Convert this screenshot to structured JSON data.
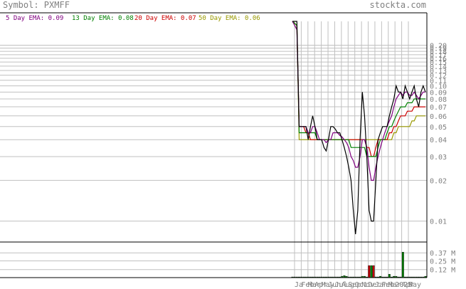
{
  "header": {
    "symbol_label": "Symbol: PXMFF",
    "site": "stockta.com"
  },
  "legend": [
    {
      "label": "5 Day EMA: 0.09",
      "color": "#800080"
    },
    {
      "label": "13 Day EMA: 0.08",
      "color": "#008000"
    },
    {
      "label": "20 Day EMA: 0.07",
      "color": "#cc0000"
    },
    {
      "label": "50 Day EMA: 0.06",
      "color": "#999900"
    }
  ],
  "colors": {
    "price": "#000000",
    "grid": "#c0c0c0",
    "axis_text": "#808080",
    "title": "#808080",
    "volume_up": "#008000",
    "volume_down": "#cc0000"
  },
  "chart_data": [
    {
      "type": "line",
      "yscale": "log",
      "ylim": [
        0.007,
        0.3
      ],
      "y_tick_labels": [
        "0.20",
        "0.19",
        "0.18",
        "0.17",
        "0.16",
        "0.15",
        "0.14",
        "0.13",
        "0.12",
        "0.11",
        "0.10",
        "0.09",
        "0.08",
        "0.07",
        "0.06",
        "0.05",
        "0.04",
        "0.03",
        "0.02",
        "0.01"
      ],
      "x_tick_labels": [
        "Ja",
        "Feb",
        "Mar",
        "Apr",
        "May",
        "Jun",
        "Jul",
        "Aug",
        "Sep",
        "Oct",
        "Nov",
        "Dec",
        "Jan",
        "Feb",
        "Mar",
        "2025",
        "Apr",
        "May"
      ],
      "series": [
        {
          "name": "price",
          "values": [
            0.3,
            0.3,
            0.3,
            0.05,
            0.05,
            0.05,
            0.05,
            0.04,
            0.05,
            0.06,
            0.05,
            0.04,
            0.04,
            0.04,
            0.035,
            0.033,
            0.04,
            0.05,
            0.05,
            0.048,
            0.045,
            0.045,
            0.04,
            0.035,
            0.03,
            0.025,
            0.02,
            0.012,
            0.008,
            0.012,
            0.04,
            0.09,
            0.06,
            0.03,
            0.012,
            0.01,
            0.01,
            0.02,
            0.04,
            0.045,
            0.05,
            0.05,
            0.05,
            0.06,
            0.07,
            0.08,
            0.1,
            0.09,
            0.09,
            0.08,
            0.1,
            0.09,
            0.08,
            0.09,
            0.1,
            0.08,
            0.07,
            0.09,
            0.1,
            0.09
          ]
        },
        {
          "name": "5 Day EMA",
          "values": [
            0.3,
            0.28,
            0.26,
            0.05,
            0.05,
            0.05,
            0.05,
            0.045,
            0.045,
            0.05,
            0.05,
            0.045,
            0.04,
            0.04,
            0.04,
            0.038,
            0.04,
            0.04,
            0.045,
            0.045,
            0.045,
            0.043,
            0.042,
            0.04,
            0.038,
            0.035,
            0.03,
            0.028,
            0.025,
            0.025,
            0.03,
            0.04,
            0.04,
            0.035,
            0.025,
            0.02,
            0.02,
            0.025,
            0.03,
            0.035,
            0.04,
            0.045,
            0.05,
            0.055,
            0.06,
            0.07,
            0.08,
            0.085,
            0.09,
            0.085,
            0.09,
            0.09,
            0.085,
            0.085,
            0.09,
            0.085,
            0.08,
            0.085,
            0.09,
            0.09
          ]
        },
        {
          "name": "13 Day EMA",
          "values": [
            0.3,
            0.29,
            0.28,
            0.045,
            0.045,
            0.045,
            0.045,
            0.045,
            0.045,
            0.045,
            0.045,
            0.04,
            0.04,
            0.04,
            0.04,
            0.04,
            0.04,
            0.04,
            0.04,
            0.04,
            0.04,
            0.04,
            0.04,
            0.04,
            0.04,
            0.04,
            0.035,
            0.035,
            0.035,
            0.035,
            0.035,
            0.035,
            0.035,
            0.03,
            0.03,
            0.03,
            0.03,
            0.03,
            0.035,
            0.04,
            0.04,
            0.04,
            0.045,
            0.05,
            0.05,
            0.055,
            0.06,
            0.065,
            0.07,
            0.07,
            0.07,
            0.075,
            0.075,
            0.075,
            0.08,
            0.08,
            0.08,
            0.08,
            0.08,
            0.08
          ]
        },
        {
          "name": "20 Day EMA",
          "values": [
            0.3,
            0.29,
            0.28,
            0.05,
            0.05,
            0.05,
            0.045,
            0.045,
            0.04,
            0.04,
            0.04,
            0.04,
            0.04,
            0.04,
            0.04,
            0.04,
            0.04,
            0.04,
            0.04,
            0.04,
            0.04,
            0.04,
            0.04,
            0.04,
            0.04,
            0.04,
            0.04,
            0.04,
            0.04,
            0.04,
            0.04,
            0.04,
            0.04,
            0.035,
            0.035,
            0.03,
            0.03,
            0.035,
            0.04,
            0.04,
            0.04,
            0.04,
            0.04,
            0.045,
            0.045,
            0.05,
            0.05,
            0.055,
            0.06,
            0.06,
            0.06,
            0.065,
            0.065,
            0.065,
            0.07,
            0.07,
            0.07,
            0.07,
            0.07,
            0.07
          ]
        },
        {
          "name": "50 Day EMA",
          "values": [
            0.3,
            0.29,
            0.28,
            0.04,
            0.04,
            0.04,
            0.04,
            0.04,
            0.04,
            0.04,
            0.04,
            0.04,
            0.04,
            0.04,
            0.04,
            0.04,
            0.04,
            0.04,
            0.04,
            0.04,
            0.04,
            0.04,
            0.04,
            0.04,
            0.04,
            0.04,
            0.04,
            0.04,
            0.04,
            0.04,
            0.04,
            0.04,
            0.04,
            0.04,
            0.04,
            0.04,
            0.04,
            0.04,
            0.04,
            0.04,
            0.04,
            0.04,
            0.04,
            0.04,
            0.04,
            0.045,
            0.045,
            0.05,
            0.05,
            0.05,
            0.05,
            0.05,
            0.05,
            0.055,
            0.055,
            0.06,
            0.06,
            0.06,
            0.06,
            0.06
          ]
        }
      ]
    },
    {
      "type": "bar",
      "ylim": [
        0,
        0.5
      ],
      "y_tick_labels": [
        "0.37 M",
        "0.25 M",
        "0.12 M"
      ],
      "y_tick_values": [
        0.37,
        0.25,
        0.12
      ],
      "values": [
        0.01,
        0.01,
        0.01,
        0.01,
        0.01,
        0.01,
        0.01,
        0.01,
        0.01,
        0.01,
        0.01,
        0.01,
        0.01,
        0.01,
        0.01,
        0.01,
        0.01,
        0.01,
        0.01,
        0.01,
        0.01,
        0.01,
        0.02,
        0.03,
        0.02,
        0.01,
        0.01,
        0.01,
        0.01,
        0.01,
        0.01,
        0.02,
        0.02,
        0.01,
        0.18,
        0.18,
        0.18,
        0.01,
        0.01,
        0.02,
        0.01,
        0.01,
        0.01,
        0.05,
        0.01,
        0.02,
        0.02,
        0.01,
        0.01,
        0.38,
        0.01,
        0.01,
        0.01,
        0.01,
        0.01,
        0.01,
        0.01,
        0.01,
        0.01,
        0.02
      ],
      "colors_key": [
        "up",
        "up",
        "up",
        "up",
        "up",
        "up",
        "up",
        "up",
        "up",
        "up",
        "up",
        "up",
        "up",
        "up",
        "up",
        "up",
        "up",
        "up",
        "up",
        "up",
        "up",
        "up",
        "up",
        "up",
        "up",
        "up",
        "up",
        "up",
        "up",
        "up",
        "up",
        "up",
        "up",
        "up",
        "down",
        "up",
        "down",
        "up",
        "up",
        "up",
        "up",
        "up",
        "up",
        "up",
        "up",
        "up",
        "up",
        "up",
        "up",
        "up",
        "up",
        "up",
        "up",
        "up",
        "up",
        "up",
        "up",
        "up",
        "up",
        "up"
      ]
    }
  ]
}
